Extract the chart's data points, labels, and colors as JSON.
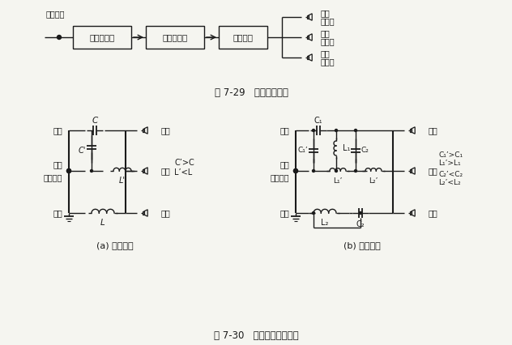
{
  "fig_width": 6.32,
  "fig_height": 4.26,
  "dpi": 100,
  "bg_color": "#f5f5f0",
  "line_color": "#1a1a1a",
  "caption1": "图 7-29   功率分频方式",
  "caption2": "图 7-30   三分频功率分频器",
  "sub_a": "(a) 单元件型",
  "sub_b": "(b) 双元件型",
  "label_gaotong": "高通",
  "label_datong": "带通",
  "label_from": "从功放来",
  "label_ditong": "低通",
  "label_gaoyin": "高音",
  "label_zhongyin": "中音",
  "label_diyin": "低音",
  "label_yangshengqi": "扬声器",
  "label_signal": "信号输入",
  "box1": "前置放大器",
  "box2": "功率放大器",
  "box3": "分频网络",
  "note_a1": "C’>C",
  "note_a2": "L’<L",
  "note_b1": "C₁’>C₁",
  "note_b2": "L₁’>L₁",
  "note_b3": "C₂’<C₂",
  "note_b4": "L₂’<L₂"
}
